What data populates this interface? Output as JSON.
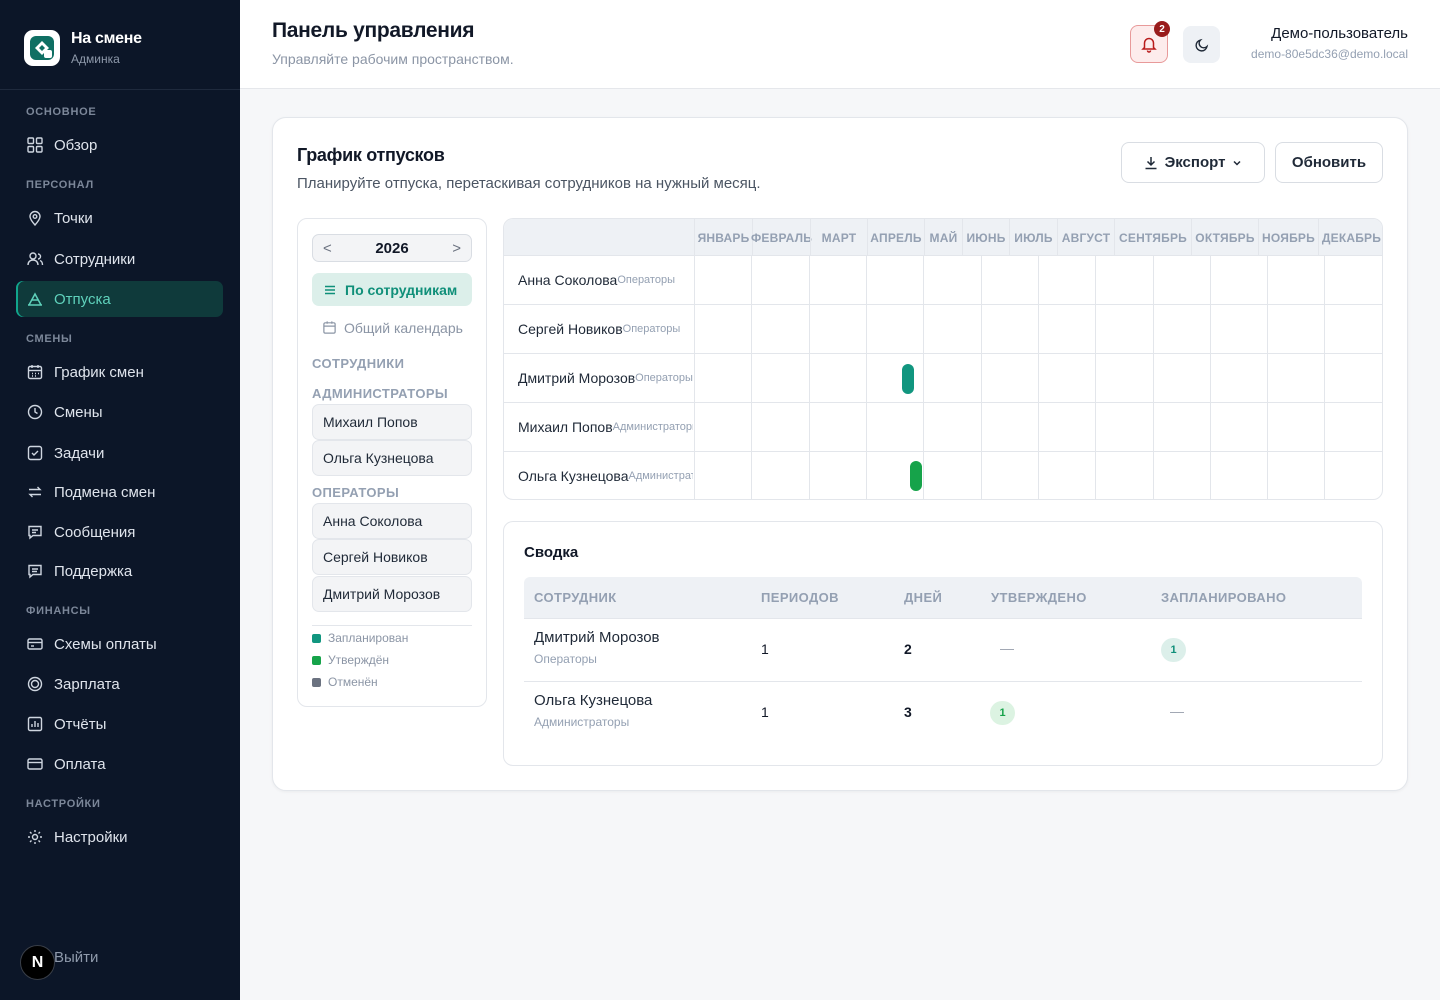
{
  "brand": {
    "title": "На смене",
    "subtitle": "Админка"
  },
  "sidebar": {
    "sections": [
      "ОСНОВНОЕ",
      "ПЕРСОНАЛ",
      "СМЕНЫ",
      "ФИНАНСЫ",
      "НАСТРОЙКИ"
    ],
    "items": [
      {
        "label": "Обзор",
        "icon": "grid-icon"
      },
      {
        "label": "Точки",
        "icon": "map-pin-icon"
      },
      {
        "label": "Сотрудники",
        "icon": "users-icon"
      },
      {
        "label": "Отпуска",
        "icon": "vacation-icon",
        "active": true
      },
      {
        "label": "График смен",
        "icon": "calendar-icon"
      },
      {
        "label": "Смены",
        "icon": "clock-icon"
      },
      {
        "label": "Задачи",
        "icon": "checkbox-icon"
      },
      {
        "label": "Подмена смен",
        "icon": "swap-icon"
      },
      {
        "label": "Сообщения",
        "icon": "message-icon"
      },
      {
        "label": "Поддержка",
        "icon": "support-icon"
      },
      {
        "label": "Схемы оплаты",
        "icon": "card-icon"
      },
      {
        "label": "Зарплата",
        "icon": "coin-icon"
      },
      {
        "label": "Отчёты",
        "icon": "chart-icon"
      },
      {
        "label": "Оплата",
        "icon": "wallet-icon"
      },
      {
        "label": "Настройки",
        "icon": "gear-icon"
      }
    ],
    "logout": "Выйти",
    "badge": "N"
  },
  "header": {
    "title": "Панель управления",
    "subtitle": "Управляйте рабочим пространством.",
    "notifications": "2",
    "user_name": "Демо-пользователь",
    "user_email": "demo-80e5dc36@demo.local"
  },
  "vacations": {
    "title": "График отпусков",
    "subtitle": "Планируйте отпуска, перетаскивая сотрудников на нужный месяц.",
    "export_label": "Экспорт",
    "refresh_label": "Обновить",
    "year": "2026",
    "prev": "<",
    "next": ">",
    "mode_by_employee": "По сотрудникам",
    "mode_calendar": "Общий календарь",
    "employees_label": "СОТРУДНИКИ",
    "groups": [
      {
        "name": "АДМИНИСТРАТОРЫ",
        "employees": [
          "Михаил Попов",
          "Ольга Кузнецова"
        ]
      },
      {
        "name": "ОПЕРАТОРЫ",
        "employees": [
          "Анна Соколова",
          "Сергей Новиков",
          "Дмитрий Морозов"
        ]
      }
    ],
    "legend": [
      {
        "label": "Запланирован",
        "color": "#11967f"
      },
      {
        "label": "Утверждён",
        "color": "#16a34a"
      },
      {
        "label": "Отменён",
        "color": "#6b7280"
      }
    ],
    "months": [
      "ЯНВАРЬ",
      "ФЕВРАЛЬ",
      "МАРТ",
      "АПРЕЛЬ",
      "МАЙ",
      "ИЮНЬ",
      "ИЮЛЬ",
      "АВГУСТ",
      "СЕНТЯБРЬ",
      "ОКТЯБРЬ",
      "НОЯБРЬ",
      "ДЕКАБРЬ"
    ],
    "rows": [
      {
        "name": "Анна Соколова",
        "group": "Операторы"
      },
      {
        "name": "Сергей Новиков",
        "group": "Операторы"
      },
      {
        "name": "Дмитрий Морозов",
        "group": "Операторы"
      },
      {
        "name": "Михаил Попов",
        "group": "Администраторы"
      },
      {
        "name": "Ольга Кузнецова",
        "group": "Администраторы"
      }
    ]
  },
  "summary": {
    "title": "Сводка",
    "columns": [
      "СОТРУДНИК",
      "ПЕРИОДОВ",
      "ДНЕЙ",
      "УТВЕРЖДЕНО",
      "ЗАПЛАНИРОВАНО"
    ],
    "rows": [
      {
        "name": "Дмитрий Морозов",
        "group": "Операторы",
        "periods": "1",
        "days": "2",
        "approved": "—",
        "planned": "1"
      },
      {
        "name": "Ольга Кузнецова",
        "group": "Администраторы",
        "periods": "1",
        "days": "3",
        "approved": "1",
        "planned": "—"
      }
    ]
  }
}
